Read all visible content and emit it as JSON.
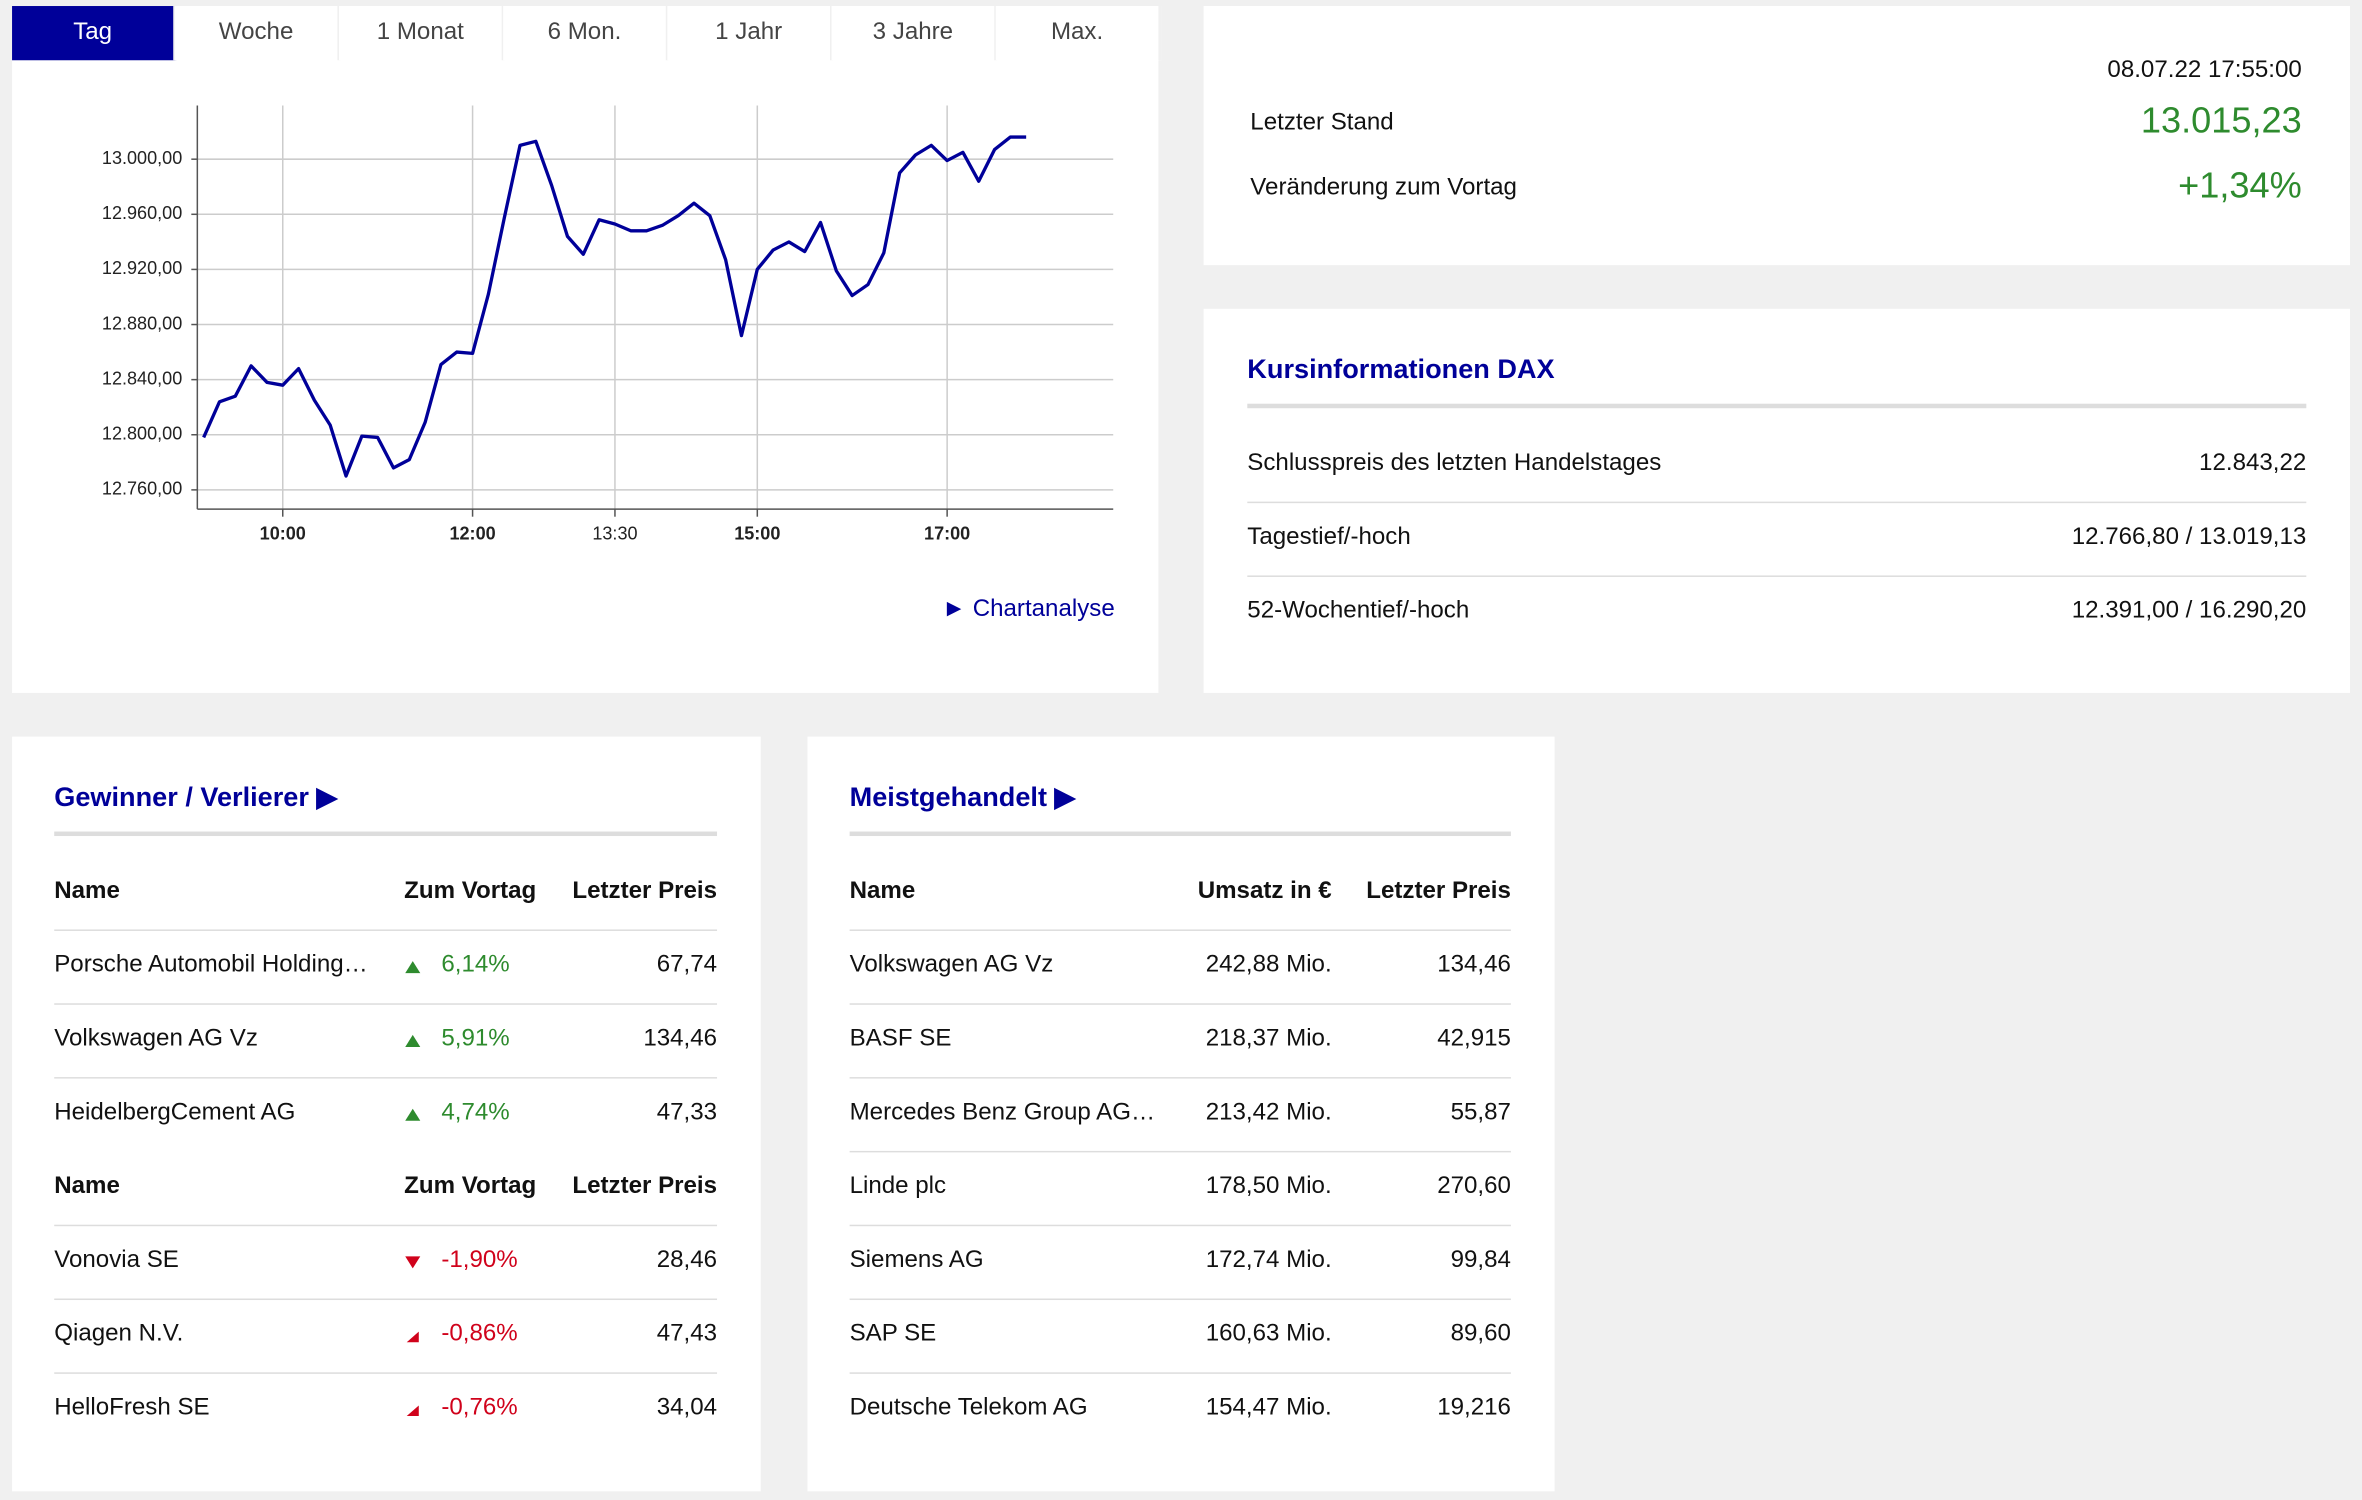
{
  "tabs": [
    "Tag",
    "Woche",
    "1 Monat",
    "6 Mon.",
    "1 Jahr",
    "3 Jahre",
    "Max."
  ],
  "chart_data": {
    "type": "line",
    "x": [
      550,
      560,
      570,
      580,
      590,
      600,
      610,
      620,
      630,
      640,
      650,
      660,
      670,
      680,
      690,
      700,
      710,
      720,
      730,
      740,
      750,
      760,
      770,
      780,
      790,
      800,
      810,
      820,
      830,
      840,
      850,
      860,
      870,
      880,
      890,
      900,
      910,
      920,
      930,
      940,
      950,
      960,
      970,
      980,
      990,
      1000,
      1010,
      1020,
      1030,
      1040,
      1050,
      1060,
      1070
    ],
    "series": [
      {
        "color": "#000099",
        "values": [
          12798,
          12824,
          12828,
          12850,
          12838,
          12836,
          12848,
          12825,
          12807,
          12770,
          12799,
          12798,
          12776,
          12782,
          12809,
          12851,
          12860,
          12859,
          12902,
          12957,
          13010,
          13013,
          12981,
          12944,
          12931,
          12956,
          12953,
          12948,
          12948,
          12952,
          12959,
          12968,
          12959,
          12927,
          12872,
          12920,
          12934,
          12940,
          12933,
          12954,
          12919,
          12901,
          12909,
          12932,
          12990,
          13003,
          13010,
          12999,
          13005,
          12984,
          13007,
          13016,
          13016
        ]
      }
    ],
    "xlim": [
      546,
      1125
    ],
    "xticks": [
      {
        "value": 600,
        "label": "10:00"
      },
      {
        "value": 720,
        "label": "12:00"
      },
      {
        "value": 810,
        "label": "13:30"
      },
      {
        "value": 900,
        "label": "15:00"
      },
      {
        "value": 1020,
        "label": "17:00"
      }
    ],
    "ylim": [
      12746,
      13039
    ],
    "yticks": [
      {
        "value": 12760,
        "label": "12.760,00"
      },
      {
        "value": 12800,
        "label": "12.800,00"
      },
      {
        "value": 12840,
        "label": "12.840,00"
      },
      {
        "value": 12880,
        "label": "12.880,00"
      },
      {
        "value": 12920,
        "label": "12.920,00"
      },
      {
        "value": 12960,
        "label": "12.960,00"
      },
      {
        "value": 13000,
        "label": "13.000,00"
      }
    ],
    "grid": true
  },
  "chart_link": "► Chartanalyse",
  "quote": {
    "datetime": "08.07.22 17:55:00",
    "rows": [
      [
        "Letzter Stand",
        "13.015,23"
      ],
      [
        "Veränderung zum Vortag",
        "+1,34%"
      ]
    ]
  },
  "kursinfo": {
    "title": "Kursinformationen DAX",
    "rows": [
      [
        "Schlusspreis des letzten Handelstages",
        "12.843,22"
      ],
      [
        "Tagestief/-hoch",
        "12.766,80 / 13.019,13"
      ],
      [
        "52-Wochentief/-hoch",
        "12.391,00 / 16.290,20"
      ]
    ]
  },
  "movers": {
    "title": "Gewinner / Verlierer ▶",
    "sections": [
      {
        "header": [
          "Name",
          "Zum Vortag",
          "Letzter Preis"
        ],
        "rows": [
          [
            "Porsche Automobil Holding…",
            "6,14%",
            "67,74"
          ],
          [
            "Volkswagen AG Vz",
            "5,91%",
            "134,46"
          ],
          [
            "HeidelbergCement AG",
            "4,74%",
            "47,33"
          ]
        ]
      },
      {
        "header": [
          "Name",
          "Zum Vortag",
          "Letzter Preis"
        ],
        "rows": [
          [
            "Vonovia SE",
            "-1,90%",
            "28,46"
          ],
          [
            "Qiagen N.V.",
            "-0,86%",
            "47,43"
          ],
          [
            "HelloFresh SE",
            "-0,76%",
            "34,04"
          ]
        ]
      }
    ]
  },
  "most_traded": {
    "title": "Meistgehandelt ▶",
    "header": [
      "Name",
      "Umsatz in €",
      "Letzter Preis"
    ],
    "rows": [
      [
        "Volkswagen AG Vz",
        "242,88 Mio.",
        "134,46"
      ],
      [
        "BASF SE",
        "218,37 Mio.",
        "42,915"
      ],
      [
        "Mercedes Benz Group AG…",
        "213,42 Mio.",
        "55,87"
      ],
      [
        "Linde plc",
        "178,50 Mio.",
        "270,60"
      ],
      [
        "Siemens AG",
        "172,74 Mio.",
        "99,84"
      ],
      [
        "SAP SE",
        "160,63 Mio.",
        "89,60"
      ],
      [
        "Deutsche Telekom AG",
        "154,47 Mio.",
        "19,216"
      ]
    ]
  }
}
